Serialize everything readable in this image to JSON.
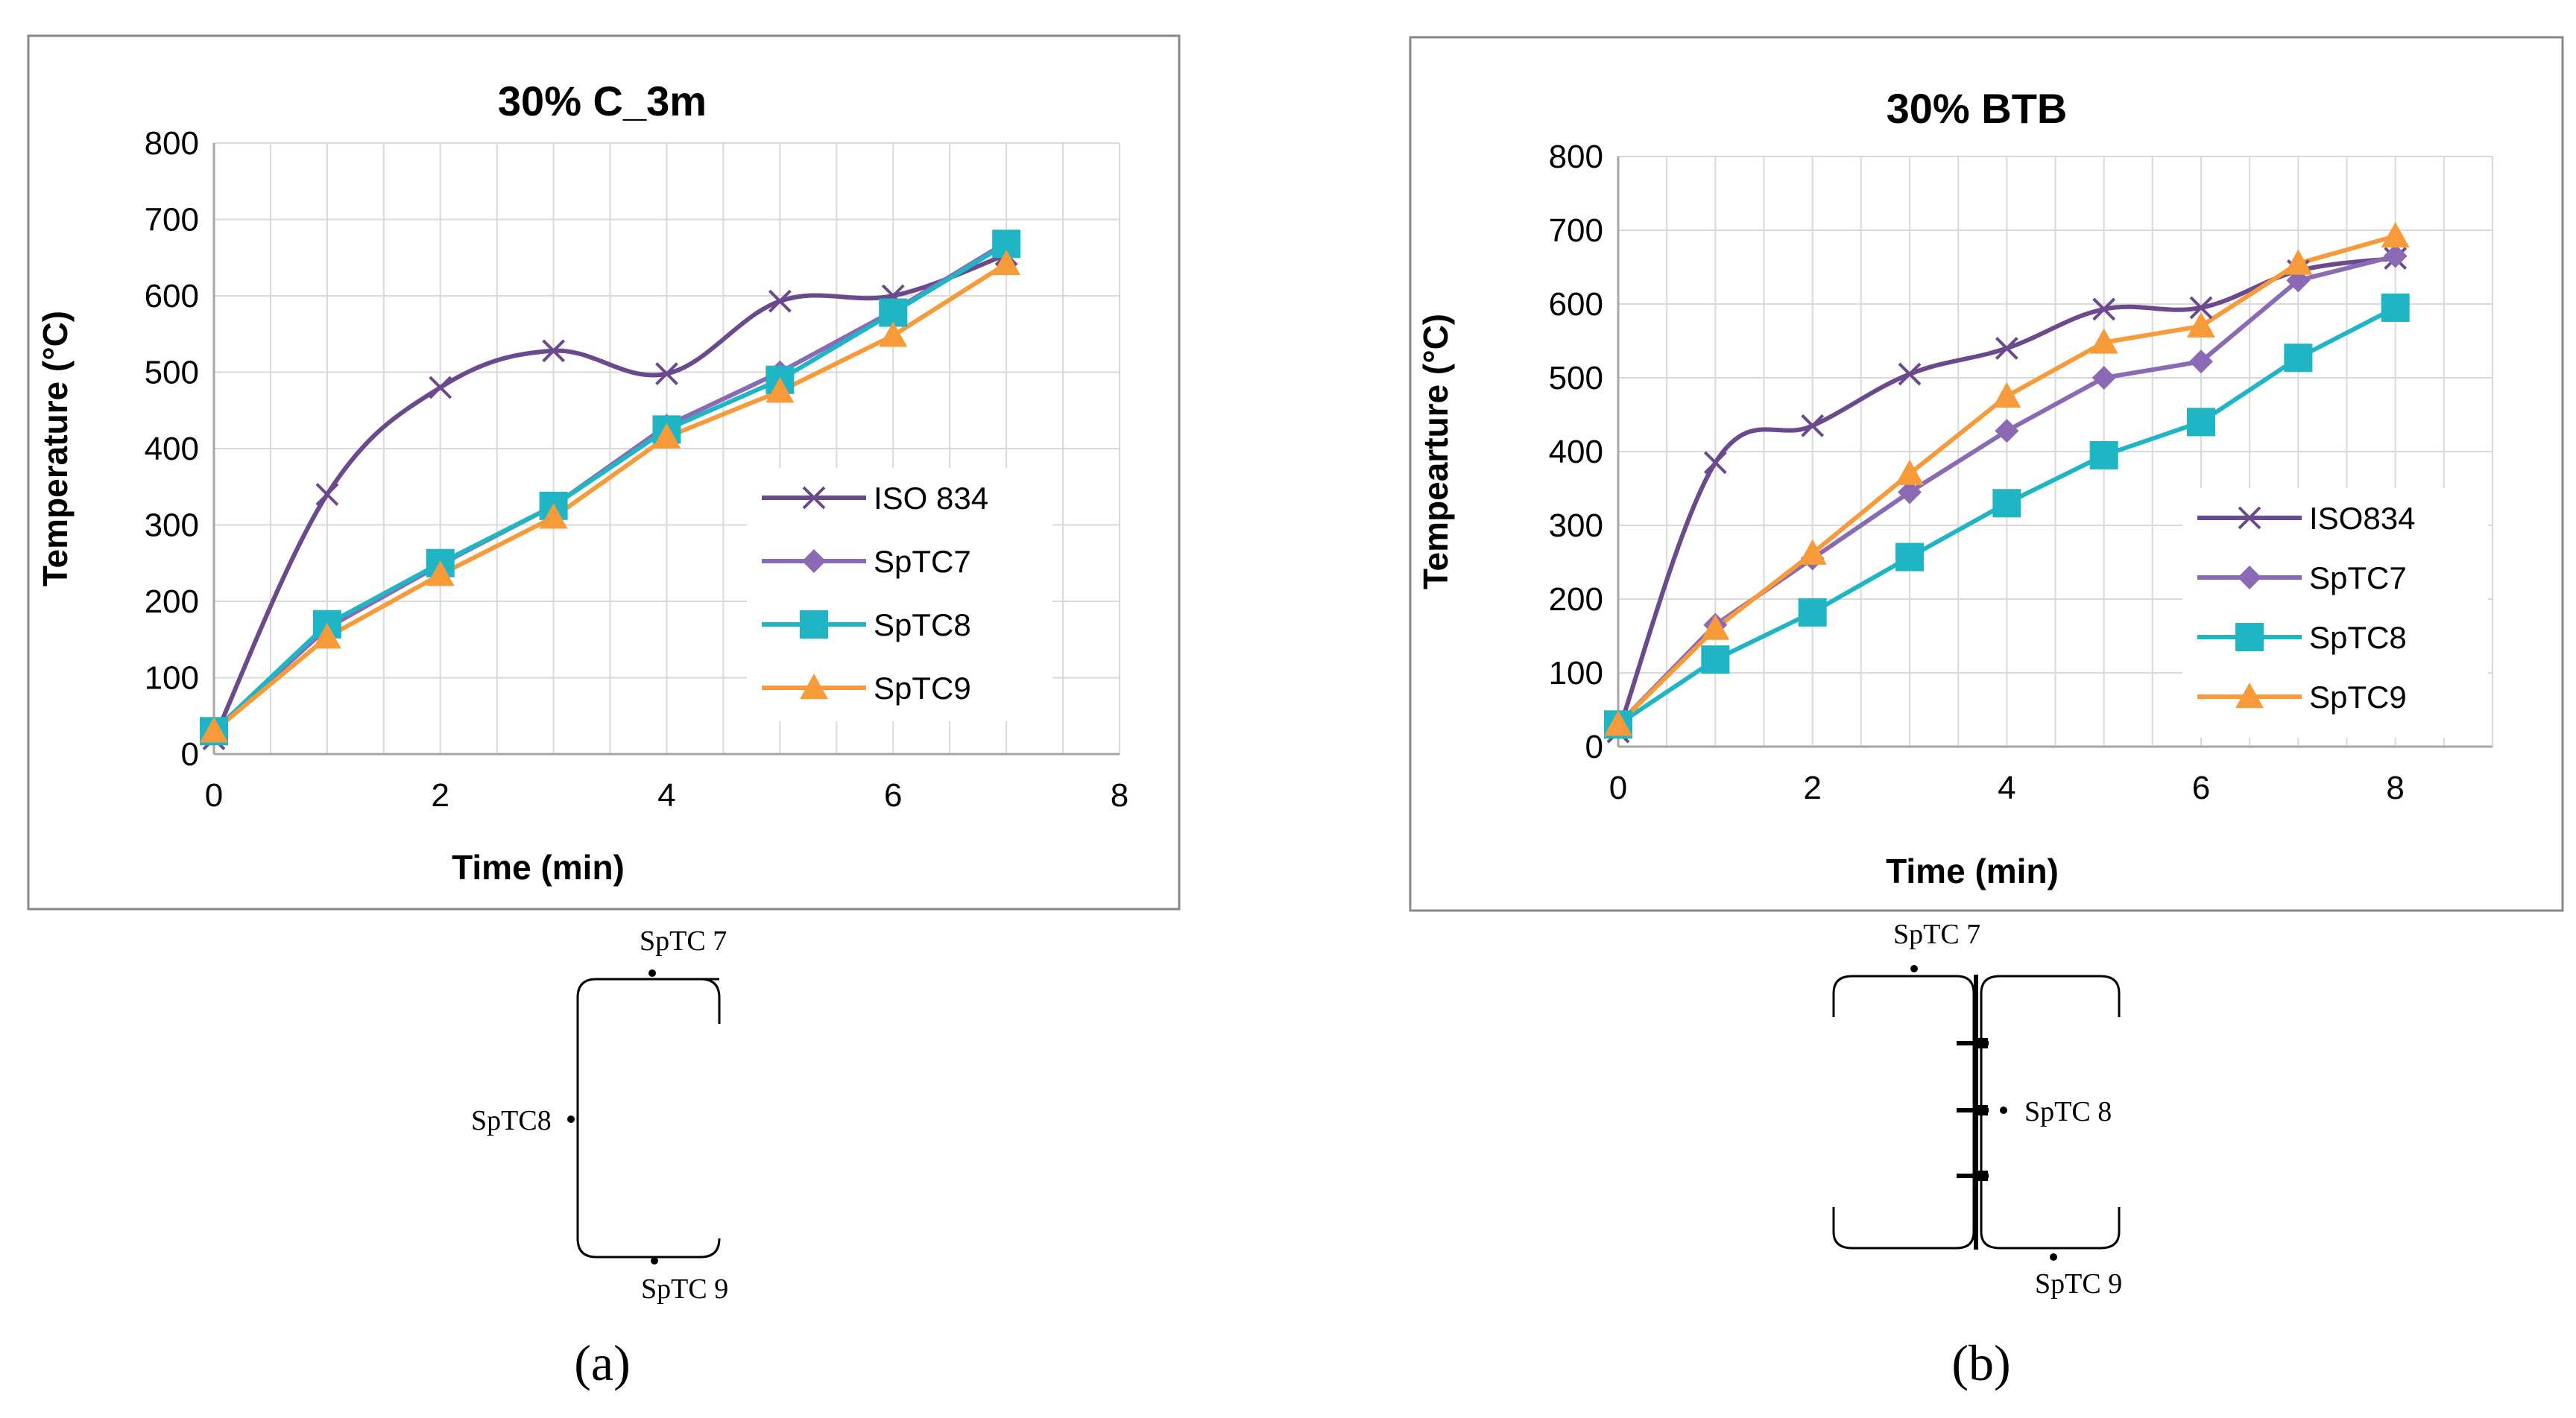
{
  "panels": [
    {
      "caption": "(a)",
      "caption_letter": "a"
    },
    {
      "caption": "(b)",
      "caption_letter": "b"
    }
  ],
  "diagrams": [
    {
      "labels": {
        "top": "SpTC 7",
        "side": "SpTC8",
        "bottom": "SpTC 9"
      }
    },
    {
      "labels": {
        "top": "SpTC 7",
        "side": "SpTC 8",
        "bottom": "SpTC 9"
      }
    }
  ],
  "chart_data": [
    {
      "type": "line",
      "title": "30% C_3m",
      "xlabel": "Time (min)",
      "ylabel": "Temperature (°C)",
      "xlim": [
        0,
        8
      ],
      "ylim": [
        0,
        800
      ],
      "xticks": [
        0,
        2,
        4,
        6,
        8
      ],
      "yticks": [
        0,
        100,
        200,
        300,
        400,
        500,
        600,
        700,
        800
      ],
      "grid": true,
      "legend_position": "right",
      "series": [
        {
          "name": "ISO 834",
          "color": "#6a4a8c",
          "marker": "x",
          "x": [
            0,
            1,
            2,
            3,
            4,
            5,
            6,
            7
          ],
          "y": [
            20,
            340,
            480,
            528,
            498,
            593,
            600,
            654
          ]
        },
        {
          "name": "SpTC7",
          "color": "#8a6ab4",
          "marker": "diamond",
          "x": [
            0,
            1,
            2,
            3,
            4,
            5,
            6,
            7
          ],
          "y": [
            30,
            165,
            248,
            325,
            430,
            500,
            580,
            670
          ]
        },
        {
          "name": "SpTC8",
          "color": "#1fb5c4",
          "marker": "square",
          "x": [
            0,
            1,
            2,
            3,
            4,
            5,
            6,
            7
          ],
          "y": [
            30,
            170,
            250,
            325,
            425,
            490,
            578,
            668
          ]
        },
        {
          "name": "SpTC9",
          "color": "#f79b3a",
          "marker": "triangle",
          "x": [
            0,
            1,
            2,
            3,
            4,
            5,
            6,
            7
          ],
          "y": [
            30,
            153,
            235,
            310,
            415,
            475,
            548,
            642
          ]
        }
      ]
    },
    {
      "type": "line",
      "title": "30% BTB",
      "xlabel": "Time (min)",
      "ylabel": "Tempearture (°C)",
      "xlim": [
        0,
        9
      ],
      "ylim": [
        0,
        800
      ],
      "xticks": [
        0,
        2,
        4,
        6,
        8
      ],
      "yticks": [
        0,
        100,
        200,
        300,
        400,
        500,
        600,
        700,
        800
      ],
      "grid": true,
      "legend_position": "right",
      "series": [
        {
          "name": "ISO834",
          "color": "#6a4a8c",
          "marker": "x",
          "x": [
            0,
            1,
            2,
            3,
            4,
            5,
            6,
            7,
            8
          ],
          "y": [
            20,
            385,
            435,
            505,
            540,
            593,
            595,
            645,
            662
          ]
        },
        {
          "name": "SpTC7",
          "color": "#8a6ab4",
          "marker": "diamond",
          "x": [
            0,
            1,
            2,
            3,
            4,
            5,
            6,
            7,
            8
          ],
          "y": [
            30,
            165,
            255,
            345,
            428,
            500,
            522,
            632,
            665
          ]
        },
        {
          "name": "SpTC8",
          "color": "#1fb5c4",
          "marker": "square",
          "x": [
            0,
            1,
            2,
            3,
            4,
            5,
            6,
            7,
            8
          ],
          "y": [
            30,
            118,
            182,
            257,
            330,
            395,
            440,
            527,
            595
          ]
        },
        {
          "name": "SpTC9",
          "color": "#f79b3a",
          "marker": "triangle",
          "x": [
            0,
            1,
            2,
            3,
            4,
            5,
            6,
            7,
            8
          ],
          "y": [
            30,
            160,
            262,
            370,
            475,
            548,
            570,
            655,
            692
          ]
        }
      ]
    }
  ]
}
